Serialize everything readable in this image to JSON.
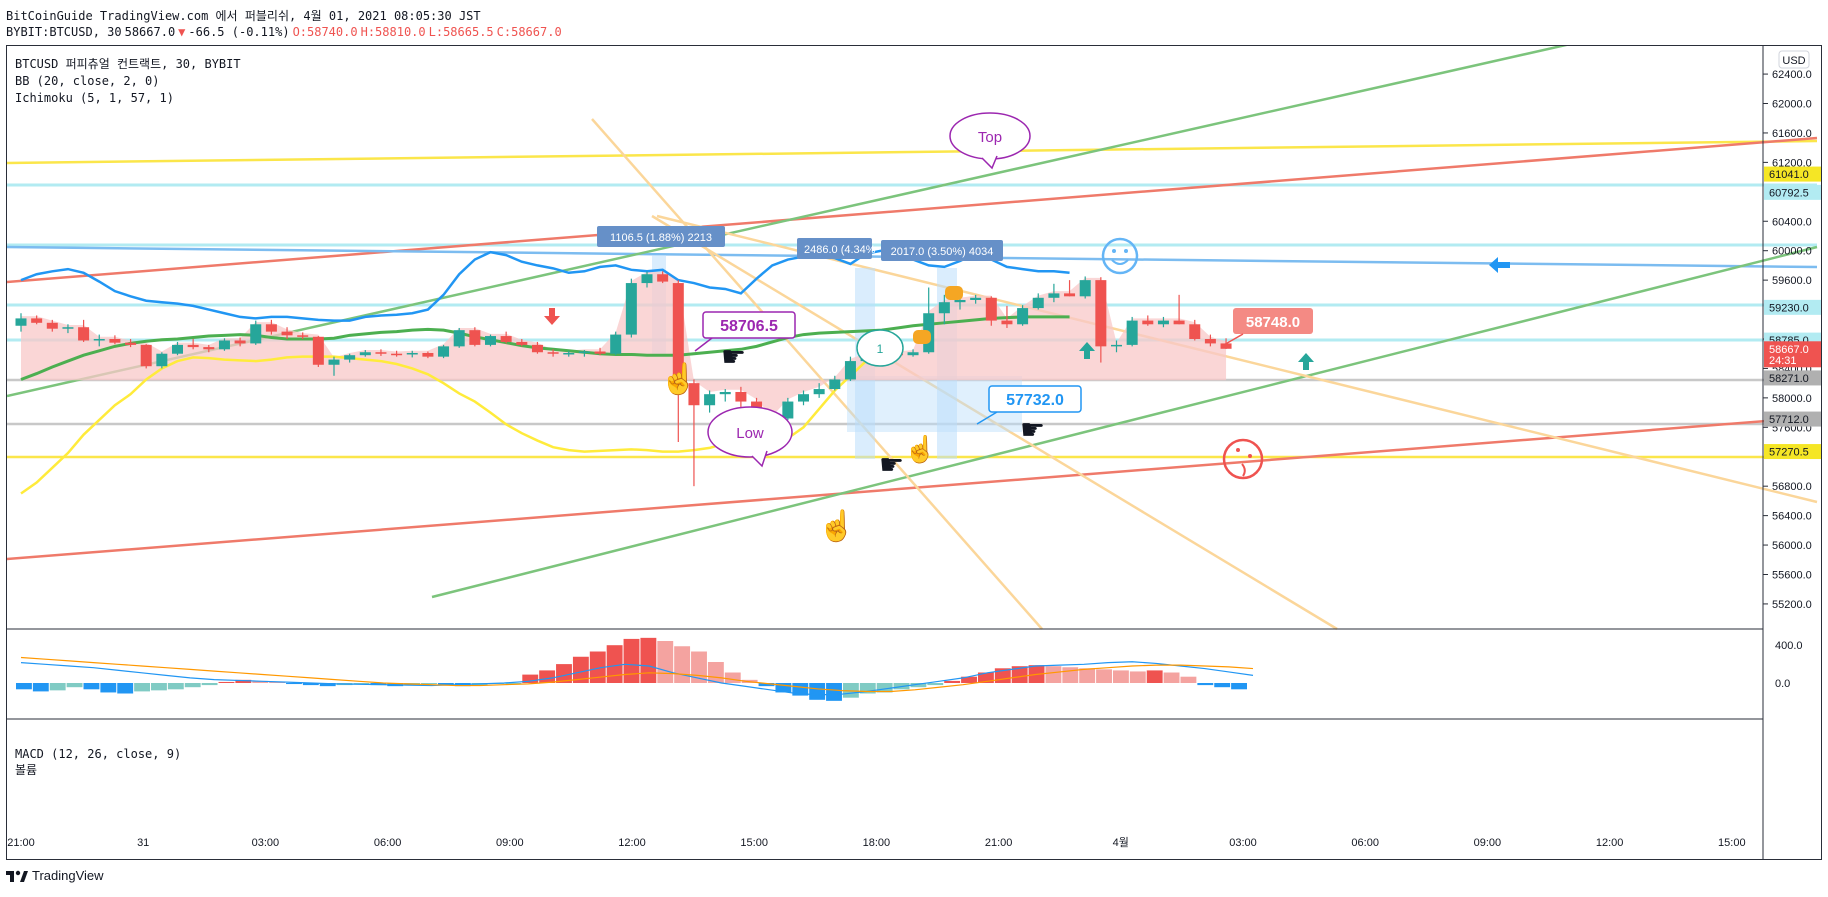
{
  "header": {
    "line1": "BitCoinGuide TradingView.com 에서 퍼블리쉬, 4월 01, 2021 08:05:30 JST",
    "symbol": "BYBIT:BTCUSD, 30",
    "price": "58667.0",
    "change": "-66.5 (-0.11%)",
    "open": "O:58740.0",
    "high": "H:58810.0",
    "low": "L:58665.5",
    "close": "C:58667.0"
  },
  "legend": {
    "title": "BTCUSD 퍼피츄얼 컨트랙트, 30, BYBIT",
    "bb": "BB (20, close, 2, 0)",
    "ichimoku": "Ichimoku (5, 1, 57, 1)"
  },
  "macd_legend": {
    "macd": "MACD (12, 26, close, 9)",
    "volume": "볼륨"
  },
  "currency": "USD",
  "footer": {
    "brand": "TradingView"
  },
  "colors": {
    "up": "#26a69a",
    "down": "#ef5350",
    "bb_upper": "#2196f3",
    "bb_mid": "#4caf50",
    "ichimoku_lag": "#ffeb3b",
    "cloud": "#f8c8c8"
  },
  "annotations": {
    "measure1": "1106.5 (1.88%) 2213",
    "measure2": "2486.0 (4.34%",
    "measure3": "2017.0 (3.50%) 4034",
    "top_bubble": "Top",
    "low_bubble": "Low",
    "callout_high": "58706.5",
    "callout_low": "57732.0",
    "callout_right": "58748.0",
    "bubble_one": "1"
  },
  "chart_data": {
    "type": "candlestick",
    "y_axis": {
      "ticks": [
        "62400.0",
        "62000.0",
        "61600.0",
        "61200.0",
        "60400.0",
        "60000.0",
        "59600.0",
        "58800.0",
        "58400.0",
        "58000.0",
        "57600.0",
        "56800.0",
        "56400.0",
        "56000.0",
        "55600.0",
        "55200.0"
      ],
      "labels": [
        {
          "text": "61041.0",
          "color": "#f5e625"
        },
        {
          "text": "60792.5",
          "color": "#b2ebf2"
        },
        {
          "text": "59230.0",
          "color": "#b2ebf2"
        },
        {
          "text": "58785.0",
          "color": "#b2ebf2"
        },
        {
          "text": "58667.0",
          "color": "#ef5350",
          "countdown": "24:31"
        },
        {
          "text": "58271.0",
          "color": "#b0b0b0"
        },
        {
          "text": "57712.0",
          "color": "#b0b0b0"
        },
        {
          "text": "57270.5",
          "color": "#f5e625"
        }
      ],
      "range": [
        54900,
        62700
      ]
    },
    "macd_axis": {
      "ticks": [
        "400.0",
        "0.0"
      ]
    },
    "x_axis": {
      "ticks": [
        "21:00",
        "31",
        "03:00",
        "06:00",
        "09:00",
        "12:00",
        "15:00",
        "18:00",
        "21:00",
        "4월",
        "03:00",
        "06:00",
        "09:00",
        "12:00",
        "15:00"
      ]
    },
    "candles": [
      {
        "o": 58980,
        "h": 59150,
        "l": 58900,
        "c": 59080
      },
      {
        "o": 59080,
        "h": 59120,
        "l": 59000,
        "c": 59020
      },
      {
        "o": 59020,
        "h": 59060,
        "l": 58900,
        "c": 58940
      },
      {
        "o": 58940,
        "h": 59000,
        "l": 58880,
        "c": 58960
      },
      {
        "o": 58960,
        "h": 59060,
        "l": 58760,
        "c": 58780
      },
      {
        "o": 58780,
        "h": 58860,
        "l": 58700,
        "c": 58800
      },
      {
        "o": 58800,
        "h": 58850,
        "l": 58730,
        "c": 58750
      },
      {
        "o": 58750,
        "h": 58800,
        "l": 58690,
        "c": 58720
      },
      {
        "o": 58720,
        "h": 58730,
        "l": 58400,
        "c": 58430
      },
      {
        "o": 58430,
        "h": 58620,
        "l": 58400,
        "c": 58600
      },
      {
        "o": 58600,
        "h": 58760,
        "l": 58580,
        "c": 58720
      },
      {
        "o": 58720,
        "h": 58800,
        "l": 58660,
        "c": 58690
      },
      {
        "o": 58690,
        "h": 58720,
        "l": 58620,
        "c": 58660
      },
      {
        "o": 58660,
        "h": 58810,
        "l": 58640,
        "c": 58780
      },
      {
        "o": 58780,
        "h": 58820,
        "l": 58700,
        "c": 58740
      },
      {
        "o": 58740,
        "h": 59050,
        "l": 58720,
        "c": 59000
      },
      {
        "o": 59000,
        "h": 59060,
        "l": 58860,
        "c": 58900
      },
      {
        "o": 58900,
        "h": 58960,
        "l": 58800,
        "c": 58850
      },
      {
        "o": 58850,
        "h": 58890,
        "l": 58800,
        "c": 58830
      },
      {
        "o": 58830,
        "h": 58840,
        "l": 58420,
        "c": 58450
      },
      {
        "o": 58450,
        "h": 58560,
        "l": 58300,
        "c": 58520
      },
      {
        "o": 58520,
        "h": 58600,
        "l": 58480,
        "c": 58580
      },
      {
        "o": 58580,
        "h": 58650,
        "l": 58560,
        "c": 58620
      },
      {
        "o": 58620,
        "h": 58660,
        "l": 58570,
        "c": 58600
      },
      {
        "o": 58600,
        "h": 58640,
        "l": 58560,
        "c": 58590
      },
      {
        "o": 58590,
        "h": 58640,
        "l": 58550,
        "c": 58610
      },
      {
        "o": 58610,
        "h": 58630,
        "l": 58540,
        "c": 58560
      },
      {
        "o": 58560,
        "h": 58720,
        "l": 58540,
        "c": 58700
      },
      {
        "o": 58700,
        "h": 58950,
        "l": 58680,
        "c": 58920
      },
      {
        "o": 58920,
        "h": 58960,
        "l": 58700,
        "c": 58720
      },
      {
        "o": 58720,
        "h": 58860,
        "l": 58700,
        "c": 58840
      },
      {
        "o": 58840,
        "h": 58900,
        "l": 58740,
        "c": 58760
      },
      {
        "o": 58760,
        "h": 58800,
        "l": 58700,
        "c": 58720
      },
      {
        "o": 58720,
        "h": 58760,
        "l": 58600,
        "c": 58620
      },
      {
        "o": 58620,
        "h": 58660,
        "l": 58560,
        "c": 58600
      },
      {
        "o": 58600,
        "h": 58640,
        "l": 58560,
        "c": 58610
      },
      {
        "o": 58610,
        "h": 58650,
        "l": 58560,
        "c": 58630
      },
      {
        "o": 58630,
        "h": 58680,
        "l": 58580,
        "c": 58600
      },
      {
        "o": 58600,
        "h": 58900,
        "l": 58580,
        "c": 58860
      },
      {
        "o": 58860,
        "h": 59620,
        "l": 58820,
        "c": 59560
      },
      {
        "o": 59560,
        "h": 59720,
        "l": 59500,
        "c": 59680
      },
      {
        "o": 59680,
        "h": 59720,
        "l": 59560,
        "c": 59580
      },
      {
        "o": 59560,
        "h": 59600,
        "l": 57400,
        "c": 58200
      },
      {
        "o": 58200,
        "h": 58250,
        "l": 56800,
        "c": 57900
      },
      {
        "o": 57900,
        "h": 58100,
        "l": 57800,
        "c": 58050
      },
      {
        "o": 58050,
        "h": 58120,
        "l": 57950,
        "c": 58080
      },
      {
        "o": 58080,
        "h": 58150,
        "l": 57400,
        "c": 57950
      },
      {
        "o": 57950,
        "h": 58000,
        "l": 57350,
        "c": 57450
      },
      {
        "o": 57450,
        "h": 57800,
        "l": 57420,
        "c": 57720
      },
      {
        "o": 57720,
        "h": 58000,
        "l": 57700,
        "c": 57950
      },
      {
        "o": 57950,
        "h": 58100,
        "l": 57900,
        "c": 58050
      },
      {
        "o": 58050,
        "h": 58200,
        "l": 58000,
        "c": 58120
      },
      {
        "o": 58120,
        "h": 58300,
        "l": 58100,
        "c": 58250
      },
      {
        "o": 58250,
        "h": 58560,
        "l": 58230,
        "c": 58500
      },
      {
        "o": 58500,
        "h": 58700,
        "l": 58480,
        "c": 58580
      },
      {
        "o": 58580,
        "h": 58620,
        "l": 58520,
        "c": 58600
      },
      {
        "o": 58600,
        "h": 58640,
        "l": 58540,
        "c": 58580
      },
      {
        "o": 58580,
        "h": 58660,
        "l": 58560,
        "c": 58620
      },
      {
        "o": 58620,
        "h": 59500,
        "l": 58600,
        "c": 59150
      },
      {
        "o": 59150,
        "h": 59400,
        "l": 59000,
        "c": 59300
      },
      {
        "o": 59300,
        "h": 59380,
        "l": 59200,
        "c": 59330
      },
      {
        "o": 59330,
        "h": 59400,
        "l": 59280,
        "c": 59360
      },
      {
        "o": 59360,
        "h": 59380,
        "l": 58980,
        "c": 59050
      },
      {
        "o": 59050,
        "h": 59250,
        "l": 58950,
        "c": 59000
      },
      {
        "o": 59000,
        "h": 59260,
        "l": 58980,
        "c": 59220
      },
      {
        "o": 59220,
        "h": 59420,
        "l": 59200,
        "c": 59360
      },
      {
        "o": 59360,
        "h": 59550,
        "l": 59300,
        "c": 59420
      },
      {
        "o": 59420,
        "h": 59600,
        "l": 59380,
        "c": 59380
      },
      {
        "o": 59380,
        "h": 59650,
        "l": 59350,
        "c": 59600
      },
      {
        "o": 59600,
        "h": 59640,
        "l": 58480,
        "c": 58700
      },
      {
        "o": 58700,
        "h": 58780,
        "l": 58620,
        "c": 58720
      },
      {
        "o": 58720,
        "h": 59100,
        "l": 58700,
        "c": 59050
      },
      {
        "o": 59050,
        "h": 59120,
        "l": 58980,
        "c": 59000
      },
      {
        "o": 59000,
        "h": 59100,
        "l": 58960,
        "c": 59050
      },
      {
        "o": 59050,
        "h": 59400,
        "l": 59000,
        "c": 59000
      },
      {
        "o": 59000,
        "h": 59060,
        "l": 58780,
        "c": 58800
      },
      {
        "o": 58800,
        "h": 58860,
        "l": 58700,
        "c": 58740
      },
      {
        "o": 58740,
        "h": 58810,
        "l": 58665,
        "c": 58667
      }
    ],
    "bb_upper": [
      59600,
      59680,
      59720,
      59750,
      59700,
      59580,
      59450,
      59380,
      59320,
      59300,
      59280,
      59250,
      59200,
      59150,
      59100,
      59080,
      59100,
      59100,
      59080,
      59060,
      59050,
      59050,
      59100,
      59120,
      59130,
      59150,
      59200,
      59400,
      59680,
      59880,
      59980,
      59940,
      59850,
      59800,
      59760,
      59700,
      59720,
      59780,
      59800,
      59740,
      59720,
      59740,
      59600,
      59560,
      59500,
      59480,
      59420,
      59620,
      59800,
      59880,
      59920,
      59920,
      59900,
      59820,
      59960,
      60000,
      59960,
      59880,
      59800,
      59780,
      59860,
      59960,
      59880,
      59780,
      59750,
      59720,
      59720,
      59700
    ],
    "bb_mid": [
      58250,
      58330,
      58420,
      58500,
      58580,
      58640,
      58700,
      58740,
      58770,
      58790,
      58800,
      58820,
      58840,
      58850,
      58860,
      58850,
      58820,
      58800,
      58800,
      58800,
      58810,
      58850,
      58870,
      58890,
      58900,
      58920,
      58930,
      58920,
      58880,
      58830,
      58790,
      58750,
      58710,
      58680,
      58660,
      58640,
      58620,
      58600,
      58590,
      58590,
      58580,
      58580,
      58580,
      58600,
      58620,
      58640,
      58660,
      58700,
      58760,
      58820,
      58860,
      58880,
      58890,
      58900,
      58910,
      58920,
      58950,
      58980,
      59000,
      59020,
      59040,
      59060,
      59080,
      59090,
      59100,
      59100,
      59100,
      59100
    ],
    "lagging_span": [
      56700,
      56850,
      57050,
      57250,
      57500,
      57700,
      57900,
      58050,
      58250,
      58400,
      58500,
      58550,
      58540,
      58520,
      58510,
      58500,
      58520,
      58550,
      58560,
      58560,
      58560,
      58540,
      58520,
      58500,
      58460,
      58400,
      58320,
      58200,
      58060,
      57950,
      57800,
      57640,
      57520,
      57420,
      57330,
      57290,
      57270,
      57280,
      57290,
      57300,
      57290,
      57270,
      57270,
      57290,
      57320,
      57380,
      57420,
      57420,
      57430,
      57450,
      57600,
      57850,
      58100,
      58300,
      58500,
      58600
    ],
    "macd_histogram": [
      -60,
      -80,
      -70,
      -40,
      -60,
      -90,
      -100,
      -80,
      -70,
      -60,
      -40,
      -20,
      10,
      30,
      20,
      10,
      -10,
      -20,
      -30,
      -20,
      -10,
      -20,
      -30,
      -20,
      -10,
      -20,
      -30,
      -20,
      -10,
      -5,
      80,
      120,
      180,
      250,
      300,
      360,
      420,
      430,
      400,
      350,
      300,
      200,
      100,
      30,
      -30,
      -90,
      -120,
      -160,
      -170,
      -140,
      -100,
      -90,
      -60,
      -40,
      -20,
      20,
      60,
      100,
      140,
      160,
      170,
      160,
      150,
      140,
      130,
      120,
      110,
      120,
      100,
      60,
      -20,
      -40,
      -60
    ],
    "macd_line": [
      240,
      220,
      200,
      180,
      150,
      120,
      90,
      60,
      40,
      30,
      20,
      10,
      0,
      -10,
      -15,
      -20,
      -25,
      -30,
      -20,
      -10,
      0,
      20,
      60,
      120,
      180,
      220,
      200,
      120,
      60,
      0,
      -40,
      -80,
      -120,
      -140,
      -130,
      -100,
      -60,
      -20,
      20,
      60,
      120,
      160,
      200,
      210,
      220,
      240,
      250,
      230,
      200,
      170,
      130,
      90
    ],
    "signal_line": [
      300,
      280,
      260,
      240,
      220,
      200,
      180,
      160,
      140,
      120,
      100,
      80,
      60,
      40,
      20,
      0,
      -10,
      -20,
      -30,
      -30,
      -20,
      -10,
      10,
      40,
      70,
      100,
      120,
      110,
      90,
      60,
      20,
      -10,
      -40,
      -70,
      -90,
      -100,
      -100,
      -80,
      -50,
      -20,
      20,
      60,
      100,
      130,
      160,
      180,
      200,
      210,
      210,
      200,
      190,
      170
    ]
  }
}
